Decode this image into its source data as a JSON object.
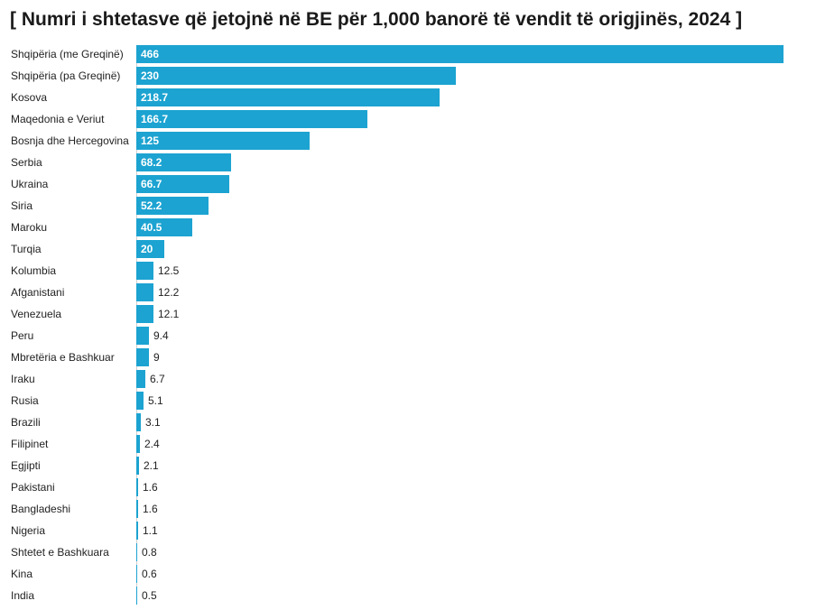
{
  "chart_data": {
    "type": "bar",
    "orientation": "horizontal",
    "title": "[ Numri i shtetasve që jetojnë në BE për 1,000 banorë të vendit të origjinës, 2024 ]",
    "xlabel": "",
    "ylabel": "",
    "xlim": [
      0,
      466
    ],
    "grid": false,
    "legend": "none",
    "bar_color": "#1ca3d1",
    "categories": [
      "Shqipëria (me Greqinë)",
      "Shqipëria (pa Greqinë)",
      "Kosova",
      "Maqedonia e Veriut",
      "Bosnja dhe Hercegovina",
      "Serbia",
      "Ukraina",
      "Siria",
      "Maroku",
      "Turqia",
      "Kolumbia",
      "Afganistani",
      "Venezuela",
      "Peru",
      "Mbretëria e Bashkuar",
      "Iraku",
      "Rusia",
      "Brazili",
      "Filipinet",
      "Egjipti",
      "Pakistani",
      "Bangladeshi",
      "Nigeria",
      "Shtetet e Bashkuara",
      "Kina",
      "India"
    ],
    "values": [
      466,
      230,
      218.7,
      166.7,
      125,
      68.2,
      66.7,
      52.2,
      40.5,
      20,
      12.5,
      12.2,
      12.1,
      9.4,
      9,
      6.7,
      5.1,
      3.1,
      2.4,
      2.1,
      1.6,
      1.6,
      1.1,
      0.8,
      0.6,
      0.5
    ],
    "value_labels": [
      "466",
      "230",
      "218.7",
      "166.7",
      "125",
      "68.2",
      "66.7",
      "52.2",
      "40.5",
      "20",
      "12.5",
      "12.2",
      "12.1",
      "9.4",
      "9",
      "6.7",
      "5.1",
      "3.1",
      "2.4",
      "2.1",
      "1.6",
      "1.6",
      "1.1",
      "0.8",
      "0.6",
      "0.5"
    ]
  }
}
